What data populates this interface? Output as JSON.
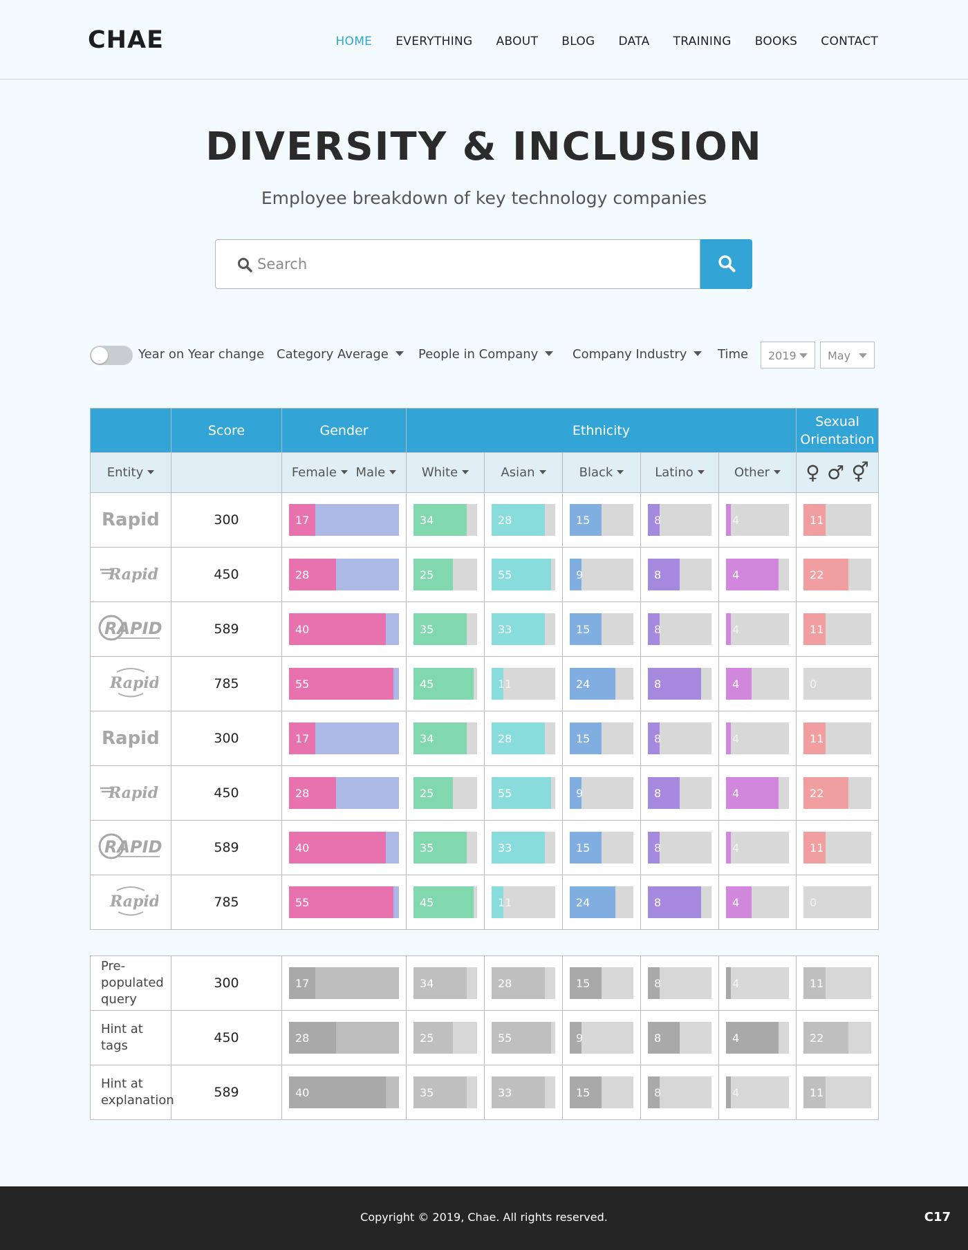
{
  "header": {
    "logo": "CHAE",
    "nav": [
      "HOME",
      "EVERYTHING",
      "ABOUT",
      "BLOG",
      "DATA",
      "TRAINING",
      "BOOKS",
      "CONTACT"
    ]
  },
  "page": {
    "title": "DIVERSITY & INCLUSION",
    "subtitle": "Employee breakdown of key technology companies"
  },
  "search": {
    "placeholder": "Search"
  },
  "filters": {
    "toggle_label": "Year on Year change",
    "category_average": "Category Average",
    "people_in_company": "People in Company",
    "company_industry": "Company Industry",
    "time_label": "Time",
    "year": "2019",
    "month": "May"
  },
  "table": {
    "group_headers": {
      "score": "Score",
      "gender": "Gender",
      "ethnicity": "Ethnicity",
      "sexual_orientation_1": "Sexual",
      "sexual_orientation_2": "Orientation"
    },
    "sub_headers": {
      "entity": "Entity",
      "female": "Female",
      "male": "Male",
      "white": "White",
      "asian": "Asian",
      "black": "Black",
      "latino": "Latino",
      "other": "Other",
      "symbols": [
        "♀",
        "♂",
        "⚥"
      ]
    },
    "rows": [
      {
        "logo": "Rapid",
        "score": "300",
        "female": 17,
        "white": 34,
        "asian": 28,
        "black": 15,
        "latino": 8,
        "other": 4,
        "so": 11
      },
      {
        "logo": "Rapid",
        "score": "450",
        "female": 28,
        "white": 25,
        "asian": 55,
        "black": 9,
        "latino": 8,
        "other": 4,
        "so": 22
      },
      {
        "logo": "RAPID",
        "score": "589",
        "female": 40,
        "white": 35,
        "asian": 33,
        "black": 15,
        "latino": 8,
        "other": 4,
        "so": 11
      },
      {
        "logo": "Rapid",
        "score": "785",
        "female": 55,
        "white": 45,
        "asian": 11,
        "black": 24,
        "latino": 8,
        "other": 4,
        "so": 0
      },
      {
        "logo": "Rapid",
        "score": "300",
        "female": 17,
        "white": 34,
        "asian": 28,
        "black": 15,
        "latino": 8,
        "other": 4,
        "so": 11
      },
      {
        "logo": "Rapid",
        "score": "450",
        "female": 28,
        "white": 25,
        "asian": 55,
        "black": 9,
        "latino": 8,
        "other": 4,
        "so": 22
      },
      {
        "logo": "RAPID",
        "score": "589",
        "female": 40,
        "white": 35,
        "asian": 33,
        "black": 15,
        "latino": 8,
        "other": 4,
        "so": 11
      },
      {
        "logo": "Rapid",
        "score": "785",
        "female": 55,
        "white": 45,
        "asian": 11,
        "black": 24,
        "latino": 8,
        "other": 4,
        "so": 0
      }
    ],
    "fill_fractions": [
      {
        "female": 0.24,
        "white": 0.84,
        "asian": 0.84,
        "black": 0.5,
        "latino": 0.18,
        "other": 0.08,
        "so": 0.33
      },
      {
        "female": 0.43,
        "white": 0.62,
        "asian": 0.94,
        "black": 0.18,
        "latino": 0.5,
        "other": 0.84,
        "so": 0.66
      },
      {
        "female": 0.88,
        "white": 0.84,
        "asian": 0.84,
        "black": 0.5,
        "latino": 0.18,
        "other": 0.08,
        "so": 0.33
      },
      {
        "female": 0.95,
        "white": 0.95,
        "asian": 0.18,
        "black": 0.72,
        "latino": 0.84,
        "other": 0.41,
        "so": 0.0
      },
      {
        "female": 0.24,
        "white": 0.84,
        "asian": 0.84,
        "black": 0.5,
        "latino": 0.18,
        "other": 0.08,
        "so": 0.33
      },
      {
        "female": 0.43,
        "white": 0.62,
        "asian": 0.94,
        "black": 0.18,
        "latino": 0.5,
        "other": 0.84,
        "so": 0.66
      },
      {
        "female": 0.88,
        "white": 0.84,
        "asian": 0.84,
        "black": 0.5,
        "latino": 0.18,
        "other": 0.08,
        "so": 0.33
      },
      {
        "female": 0.95,
        "white": 0.95,
        "asian": 0.18,
        "black": 0.72,
        "latino": 0.84,
        "other": 0.41,
        "so": 0.0
      }
    ]
  },
  "hints": [
    {
      "label": "Pre-populated query",
      "score": "300",
      "female": 17,
      "white": 34,
      "asian": 28,
      "black": 15,
      "latino": 8,
      "other": 4,
      "so": 11
    },
    {
      "label": "Hint at tags",
      "score": "450",
      "female": 28,
      "white": 25,
      "asian": 55,
      "black": 9,
      "latino": 8,
      "other": 4,
      "so": 22
    },
    {
      "label": "Hint at explanation",
      "score": "589",
      "female": 40,
      "white": 35,
      "asian": 33,
      "black": 15,
      "latino": 8,
      "other": 4,
      "so": 11
    }
  ],
  "hint_fill_fractions": [
    {
      "female": 0.24,
      "white": 0.84,
      "asian": 0.84,
      "black": 0.5,
      "latino": 0.18,
      "other": 0.08,
      "so": 0.33
    },
    {
      "female": 0.43,
      "white": 0.62,
      "asian": 0.94,
      "black": 0.18,
      "latino": 0.5,
      "other": 0.84,
      "so": 0.66
    },
    {
      "female": 0.88,
      "white": 0.84,
      "asian": 0.84,
      "black": 0.5,
      "latino": 0.18,
      "other": 0.08,
      "so": 0.33
    }
  ],
  "footer": {
    "copyright": "Copyright © 2019, Chae. All rights reserved.",
    "code": "C17"
  },
  "colors": {
    "accent": "#33a4d6",
    "female": "#e872ad",
    "male": "#acb9e6",
    "white": "#82d8ae",
    "asian": "#88dcdc",
    "black": "#80aee0",
    "latino": "#a589de",
    "other": "#d188dc",
    "sexual_orientation": "#f19ea0"
  }
}
